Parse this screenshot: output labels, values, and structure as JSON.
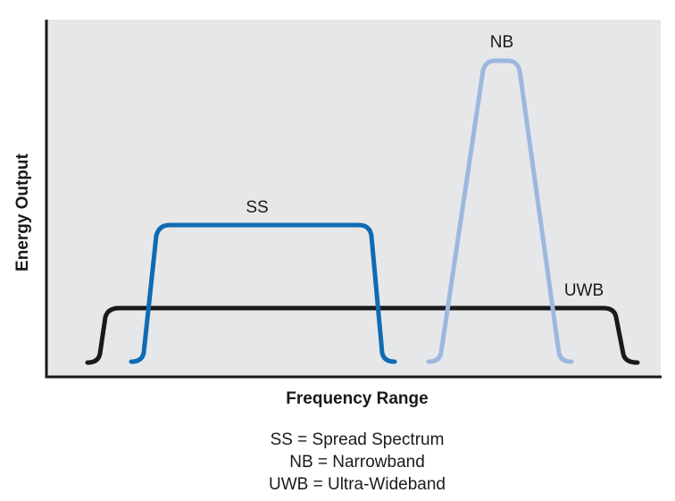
{
  "diagram": {
    "y_axis_label": "Energy Output",
    "x_axis_label": "Frequency Range",
    "curves": [
      {
        "id": "uwb",
        "label": "UWB",
        "color": "#1a1a1a"
      },
      {
        "id": "ss",
        "label": "SS",
        "color": "#0f6bb3"
      },
      {
        "id": "nb",
        "label": "NB",
        "color": "#9db8e0"
      }
    ],
    "legend": [
      "SS = Spread Spectrum",
      "NB = Narrowband",
      "UWB = Ultra-Wideband"
    ],
    "colors": {
      "plot_background": "#e6e7e8",
      "axis": "#1a1a1a"
    }
  }
}
